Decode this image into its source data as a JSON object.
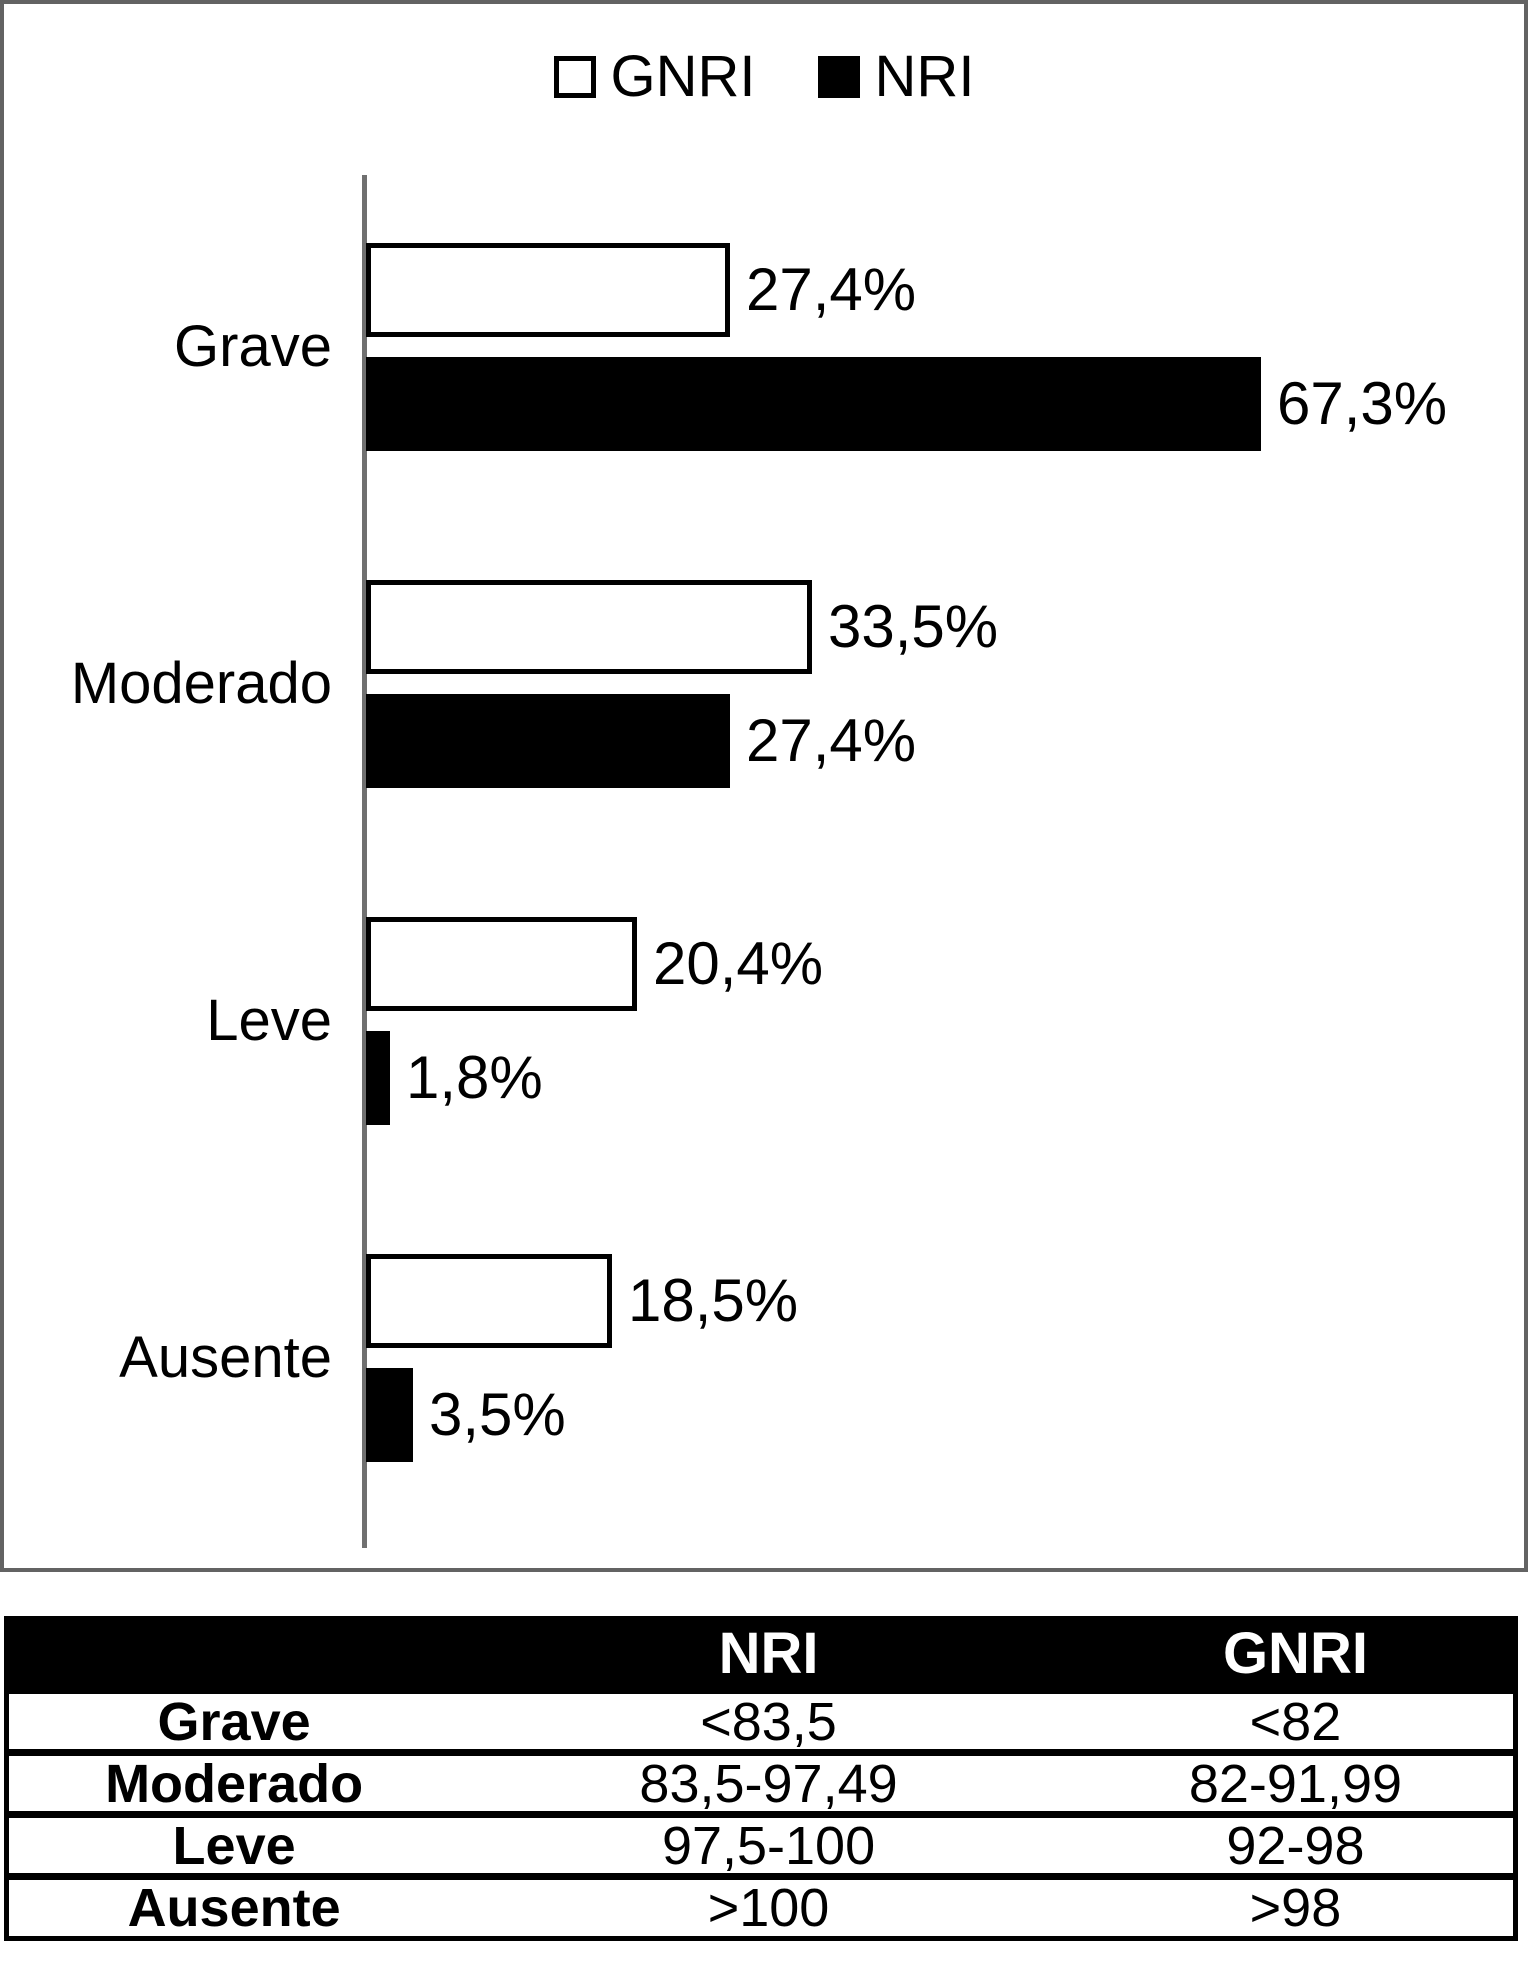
{
  "legend": {
    "items": [
      {
        "name": "GNRI",
        "label": "GNRI",
        "swatch": "white"
      },
      {
        "name": "NRI",
        "label": "NRI",
        "swatch": "black"
      }
    ]
  },
  "chart_data": {
    "type": "bar",
    "orientation": "horizontal",
    "categories": [
      "Grave",
      "Moderado",
      "Leve",
      "Ausente"
    ],
    "series": [
      {
        "name": "GNRI",
        "color": "#ffffff",
        "values": [
          27.4,
          33.5,
          20.4,
          18.5
        ],
        "labels": [
          "27,4%",
          "33,5%",
          "20,4%",
          "18,5%"
        ]
      },
      {
        "name": "NRI",
        "color": "#000000",
        "values": [
          67.3,
          27.4,
          1.8,
          3.5
        ],
        "labels": [
          "67,3%",
          "27,4%",
          "1,8%",
          "3,5%"
        ]
      }
    ],
    "title": "",
    "xlabel": "",
    "ylabel": "",
    "xlim": [
      0,
      86
    ],
    "grid": false,
    "legend_position": "top-center",
    "value_suffix": "%"
  },
  "table": {
    "headers": [
      "",
      "NRI",
      "GNRI"
    ],
    "rows": [
      {
        "label": "Grave",
        "nri": "<83,5",
        "gnri": "<82"
      },
      {
        "label": "Moderado",
        "nri": "83,5-97,49",
        "gnri": "82-91,99"
      },
      {
        "label": "Leve",
        "nri": "97,5-100",
        "gnri": "92-98"
      },
      {
        "label": "Ausente",
        "nri": ">100",
        "gnri": ">98"
      }
    ]
  },
  "colors": {
    "panel_border": "#636363",
    "axis": "#707070",
    "bar_white": "#ffffff",
    "bar_black": "#000000",
    "bar_border": "#000000",
    "table_header_bg": "#000000",
    "table_header_text": "#ffffff"
  }
}
